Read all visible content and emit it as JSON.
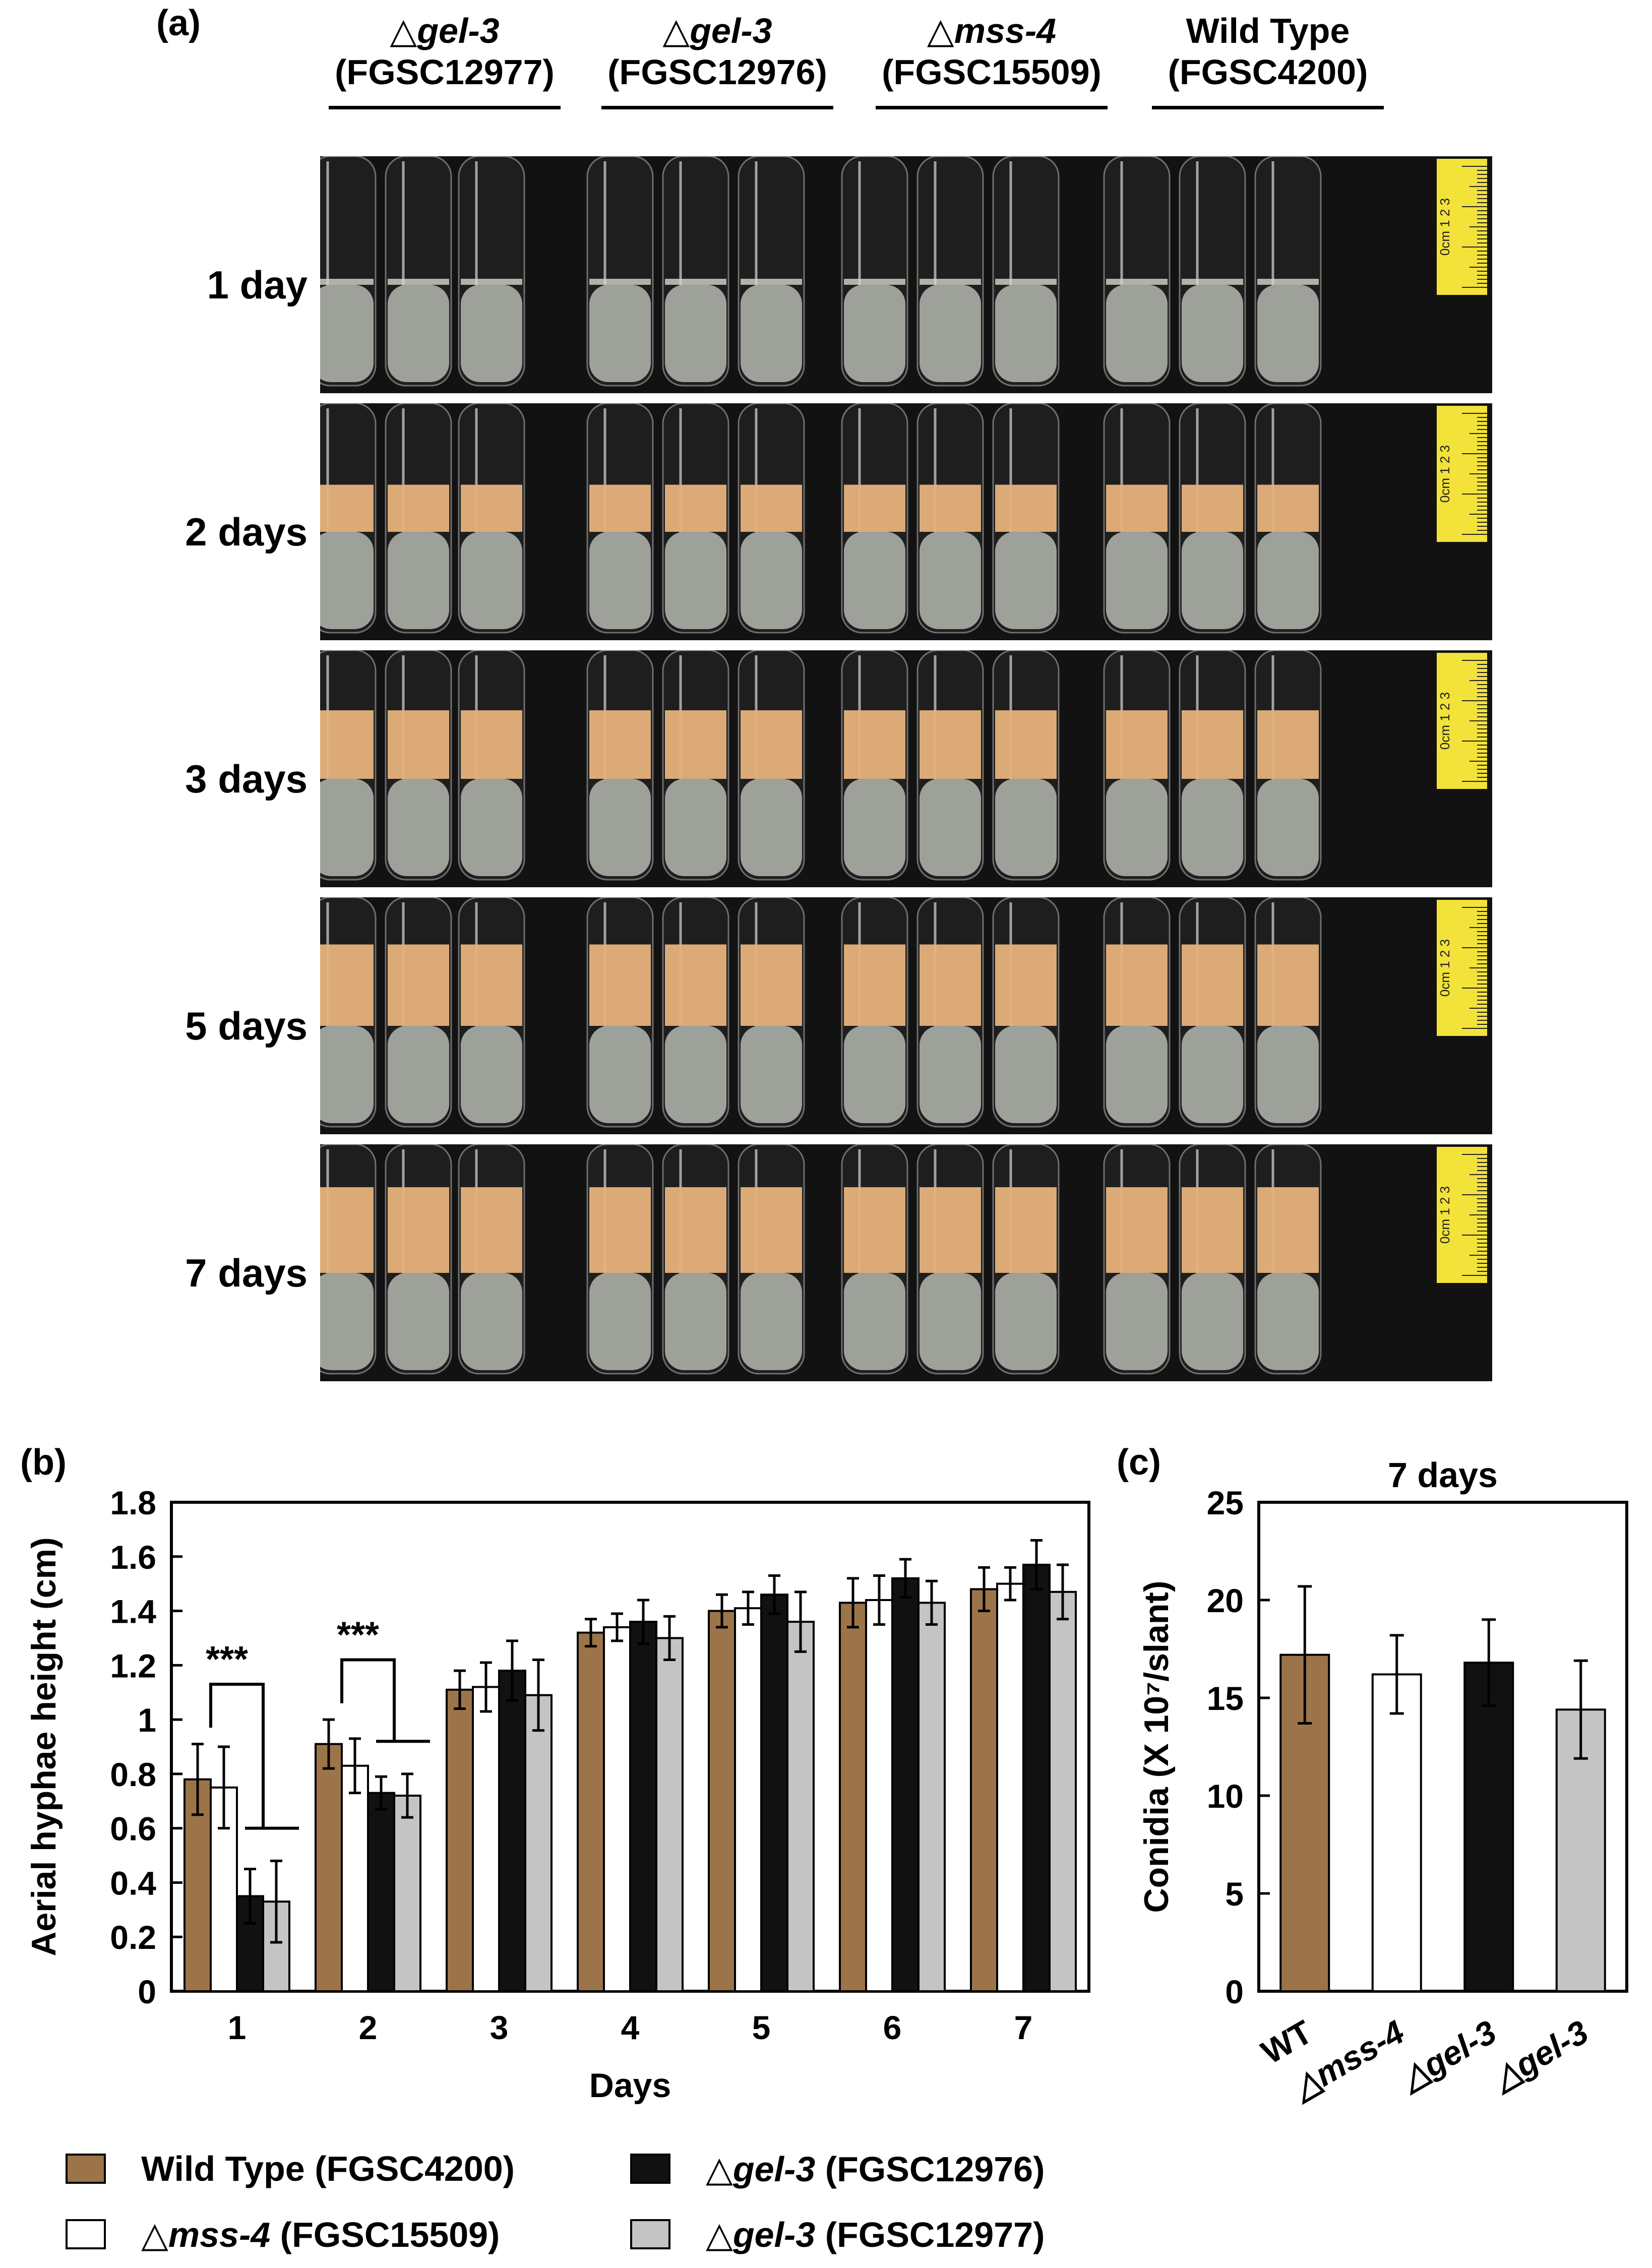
{
  "figure": {
    "panel_a_label": "(a)",
    "panel_b_label": "(b)",
    "panel_c_label": "(c)"
  },
  "panel_a": {
    "strains": [
      {
        "symbol": "△",
        "name": "gel-3",
        "code": "(FGSC12977)"
      },
      {
        "symbol": "△",
        "name": "gel-3",
        "code": "(FGSC12976)"
      },
      {
        "symbol": "△",
        "name": "mss-4",
        "code": "(FGSC15509)"
      },
      {
        "symbol": "",
        "name": "Wild Type",
        "code": "(FGSC4200)"
      }
    ],
    "rows": [
      {
        "label": "1 day",
        "growth": 0.0
      },
      {
        "label": "2 days",
        "growth": 0.55
      },
      {
        "label": "3 days",
        "growth": 0.8
      },
      {
        "label": "5 days",
        "growth": 0.95
      },
      {
        "label": "7 days",
        "growth": 1.0
      }
    ],
    "ruler_text": "0cm 1 2 3",
    "colors": {
      "background": "#121212",
      "agar": "#9ea09a",
      "mycelium": "#e6b27c",
      "ruler": "#f2e23a"
    }
  },
  "chart_data": [
    {
      "type": "bar",
      "panel": "(b)",
      "title": "",
      "xlabel": "Days",
      "ylabel": "Aerial hyphae height (cm)",
      "categories": [
        "1",
        "2",
        "3",
        "4",
        "5",
        "6",
        "7"
      ],
      "ylim": [
        0,
        1.8
      ],
      "yticks": [
        "0",
        "0.2",
        "0.4",
        "0.6",
        "0.8",
        "1",
        "1.2",
        "1.4",
        "1.6",
        "1.8"
      ],
      "series": [
        {
          "name": "Wild Type (FGSC4200)",
          "color": "#9c7449",
          "values": [
            0.78,
            0.91,
            1.11,
            1.32,
            1.4,
            1.43,
            1.48
          ],
          "errors": [
            0.13,
            0.09,
            0.07,
            0.05,
            0.06,
            0.09,
            0.08
          ]
        },
        {
          "name": "△mss-4 (FGSC15509)",
          "color": "#ffffff",
          "values": [
            0.75,
            0.83,
            1.12,
            1.34,
            1.41,
            1.44,
            1.5
          ],
          "errors": [
            0.15,
            0.1,
            0.09,
            0.05,
            0.06,
            0.09,
            0.06
          ]
        },
        {
          "name": "△gel-3 (FGSC12976)",
          "color": "#111111",
          "values": [
            0.35,
            0.73,
            1.18,
            1.36,
            1.46,
            1.52,
            1.57
          ],
          "errors": [
            0.1,
            0.06,
            0.11,
            0.08,
            0.07,
            0.07,
            0.09
          ]
        },
        {
          "name": "△gel-3 (FGSC12977)",
          "color": "#c4c4c4",
          "values": [
            0.33,
            0.72,
            1.09,
            1.3,
            1.36,
            1.43,
            1.47
          ],
          "errors": [
            0.15,
            0.08,
            0.13,
            0.08,
            0.11,
            0.08,
            0.1
          ]
        }
      ],
      "annotations": [
        {
          "text": "***",
          "category": "1"
        },
        {
          "text": "***",
          "category": "2"
        }
      ],
      "legend": [
        {
          "symbol": "",
          "name": "Wild Type",
          "code": "(FGSC4200)",
          "color": "#9c7449"
        },
        {
          "symbol": "△",
          "name": "gel-3",
          "code": "(FGSC12976)",
          "color": "#111111"
        },
        {
          "symbol": "△",
          "name": "mss-4",
          "code": "(FGSC15509)",
          "color": "#ffffff"
        },
        {
          "symbol": "△",
          "name": "gel-3",
          "code": "(FGSC12977)",
          "color": "#c4c4c4"
        }
      ]
    },
    {
      "type": "bar",
      "panel": "(c)",
      "title": "7 days",
      "xlabel": "",
      "ylabel": "Conidia (X 10⁷/slant)",
      "categories": [
        "WT",
        "△mss-4",
        "△gel-3",
        "△gel-3"
      ],
      "ylim": [
        0,
        25
      ],
      "yticks": [
        "0",
        "5",
        "10",
        "15",
        "20",
        "25"
      ],
      "values": [
        17.2,
        16.2,
        16.8,
        14.4
      ],
      "errors": [
        3.5,
        2.0,
        2.2,
        2.5
      ],
      "colors": [
        "#9c7449",
        "#ffffff",
        "#111111",
        "#c4c4c4"
      ]
    }
  ]
}
